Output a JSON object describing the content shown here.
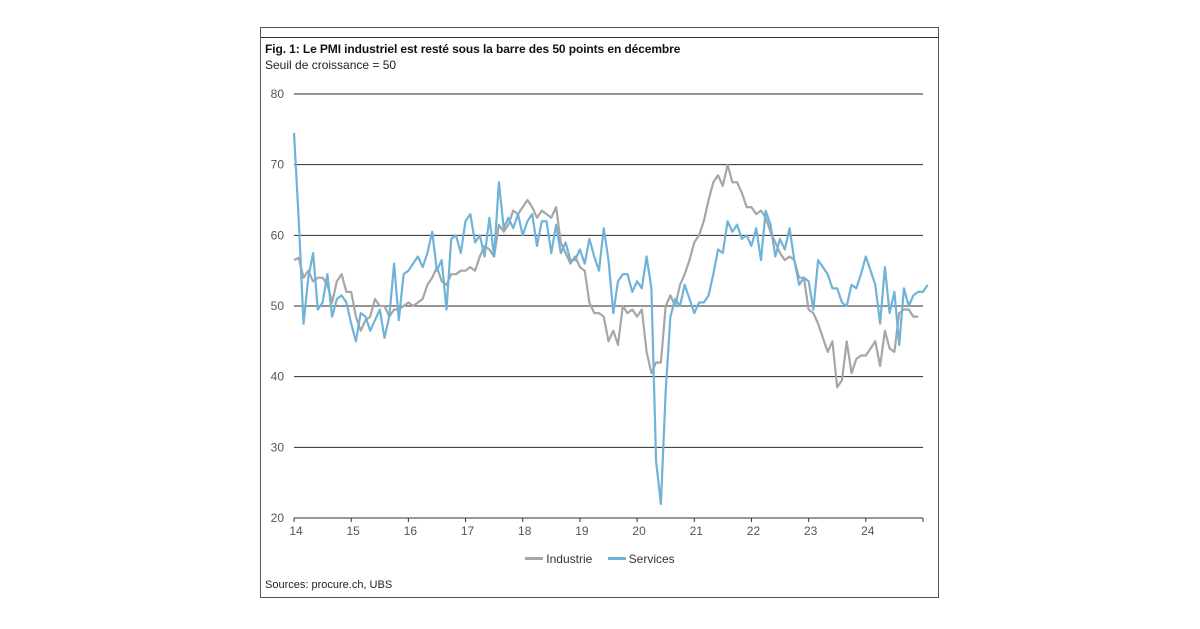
{
  "figure": {
    "title": "Fig. 1: Le PMI industriel est resté sous la barre des 50 points en décembre",
    "subtitle": "Seuil de croissance = 50",
    "source": "Sources: procure.ch, UBS"
  },
  "colors": {
    "industrie": "#a6a6a6",
    "services": "#6fb3d8",
    "grid": "#2b2b2b",
    "axis": "#333333"
  },
  "chart_data": {
    "type": "line",
    "title": "Fig. 1: Le PMI industriel est resté sous la barre des 50 points en décembre",
    "subtitle": "Seuil de croissance = 50",
    "xlabel": "",
    "ylabel": "",
    "ylim": [
      20,
      80
    ],
    "yticks": [
      20,
      30,
      40,
      50,
      60,
      70,
      80
    ],
    "xlim": [
      2014.0,
      2025.0
    ],
    "xtick_labels": [
      "14",
      "15",
      "16",
      "17",
      "18",
      "19",
      "20",
      "21",
      "22",
      "23",
      "24"
    ],
    "xtick_values": [
      2014,
      2015,
      2016,
      2017,
      2018,
      2019,
      2020,
      2021,
      2022,
      2023,
      2024
    ],
    "grid": "horizontal",
    "legend_position": "bottom",
    "series": [
      {
        "name": "Industrie",
        "color": "#a6a6a6",
        "x_start": 2014.0,
        "step": 0.08333,
        "values": [
          56.5,
          56.8,
          54.0,
          55.0,
          53.5,
          54.0,
          54.0,
          53.0,
          50.5,
          53.5,
          54.5,
          52.0,
          52.0,
          48.5,
          46.5,
          48.0,
          48.5,
          51.0,
          50.0,
          50.0,
          48.5,
          49.5,
          49.5,
          50.0,
          50.5,
          50.0,
          50.5,
          51.0,
          53.0,
          54.0,
          55.5,
          53.5,
          53.0,
          54.5,
          54.5,
          55.0,
          55.0,
          55.5,
          55.0,
          57.0,
          58.5,
          58.0,
          57.0,
          61.5,
          60.5,
          61.5,
          63.5,
          63.0,
          64.0,
          65.0,
          64.0,
          62.5,
          63.5,
          63.0,
          62.5,
          64.0,
          59.0,
          57.5,
          56.0,
          57.0,
          55.5,
          55.0,
          50.5,
          49.0,
          49.0,
          48.5,
          45.0,
          46.5,
          44.5,
          50.0,
          49.0,
          49.5,
          48.5,
          49.5,
          43.5,
          40.5,
          42.0,
          42.0,
          50.0,
          51.5,
          50.0,
          53.0,
          54.5,
          56.5,
          59.0,
          60.0,
          62.0,
          65.0,
          67.5,
          68.5,
          67.0,
          70.0,
          67.5,
          67.5,
          66.0,
          64.0,
          64.0,
          63.0,
          63.5,
          62.5,
          60.5,
          59.0,
          57.5,
          56.5,
          57.0,
          56.5,
          54.0,
          54.0,
          49.5,
          49.0,
          47.5,
          45.5,
          43.5,
          45.0,
          38.5,
          39.5,
          45.0,
          40.5,
          42.5,
          43.0,
          43.0,
          44.0,
          45.0,
          41.5,
          46.5,
          44.0,
          43.5,
          49.0,
          49.5,
          49.5,
          48.5,
          48.5
        ]
      },
      {
        "name": "Services",
        "color": "#6fb3d8",
        "x_start": 2014.0,
        "step": 0.08333,
        "values": [
          74.5,
          62.0,
          47.5,
          54.0,
          57.5,
          49.5,
          50.5,
          54.5,
          48.5,
          51.0,
          51.5,
          50.5,
          47.5,
          45.0,
          49.0,
          48.5,
          46.5,
          48.0,
          49.5,
          45.5,
          48.5,
          56.0,
          48.0,
          54.5,
          55.0,
          56.0,
          57.0,
          55.5,
          57.5,
          60.5,
          55.0,
          56.5,
          49.5,
          59.5,
          60.0,
          57.5,
          62.0,
          63.0,
          59.0,
          60.0,
          57.0,
          62.5,
          57.0,
          67.5,
          61.0,
          62.5,
          61.0,
          63.0,
          60.0,
          62.0,
          63.0,
          58.5,
          62.0,
          62.0,
          57.5,
          61.5,
          57.5,
          59.0,
          56.5,
          56.5,
          58.0,
          56.0,
          59.5,
          57.0,
          55.0,
          61.0,
          56.5,
          49.0,
          53.5,
          54.5,
          54.5,
          52.0,
          53.5,
          52.5,
          57.0,
          52.5,
          28.0,
          22.0,
          38.0,
          48.5,
          51.0,
          50.0,
          53.0,
          51.0,
          49.0,
          50.5,
          50.5,
          51.5,
          54.5,
          58.0,
          57.5,
          62.0,
          60.5,
          61.5,
          59.5,
          60.0,
          58.5,
          61.0,
          56.5,
          63.5,
          61.5,
          57.0,
          59.5,
          58.0,
          61.0,
          56.5,
          53.0,
          54.0,
          53.5,
          49.5,
          56.5,
          55.5,
          54.5,
          52.5,
          52.5,
          50.5,
          50.0,
          53.0,
          52.5,
          54.5,
          57.0,
          55.0,
          53.0,
          47.5,
          55.5,
          49.0,
          52.0,
          44.5,
          52.5,
          50.0,
          51.5,
          52.0,
          52.0,
          53.0
        ]
      }
    ]
  }
}
